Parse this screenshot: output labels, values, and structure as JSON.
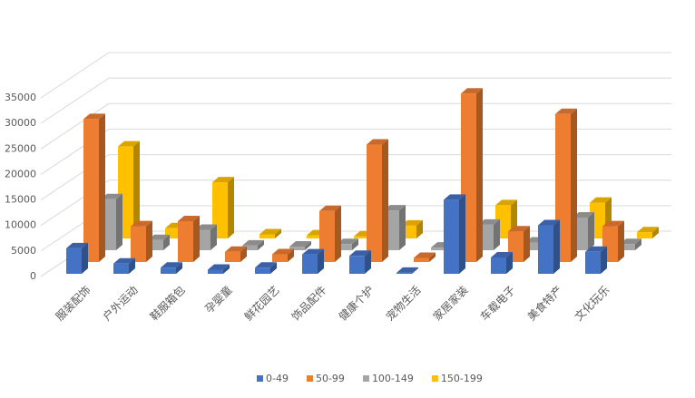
{
  "chart_data": {
    "type": "bar3d",
    "categories": [
      "服装配饰",
      "户外运动",
      "鞋服箱包",
      "孕婴童",
      "鲜花园艺",
      "饰品配件",
      "健康个护",
      "宠物生活",
      "家居家装",
      "车载电子",
      "美食特产",
      "文化玩乐"
    ],
    "series": [
      {
        "name": "0-49",
        "color": "#4472c4",
        "values": [
          5000,
          2000,
          1200,
          800,
          1200,
          3800,
          3500,
          200,
          14500,
          3200,
          9500,
          4300
        ]
      },
      {
        "name": "50-99",
        "color": "#ed7d31",
        "values": [
          28000,
          7000,
          8000,
          2000,
          1500,
          10000,
          23000,
          800,
          33000,
          6000,
          29000,
          7000
        ]
      },
      {
        "name": "100-149",
        "color": "#a5a5a5",
        "values": [
          10000,
          2000,
          4000,
          900,
          700,
          1200,
          7800,
          500,
          5000,
          1500,
          6400,
          1200
        ]
      },
      {
        "name": "150-199",
        "color": "#ffc000",
        "values": [
          18000,
          2000,
          11000,
          800,
          600,
          400,
          2500,
          300,
          6500,
          1000,
          7000,
          1200
        ]
      }
    ],
    "ylim": [
      0,
      35000
    ],
    "yticks": [
      0,
      5000,
      10000,
      15000,
      20000,
      25000,
      30000,
      35000
    ],
    "grid": true
  }
}
